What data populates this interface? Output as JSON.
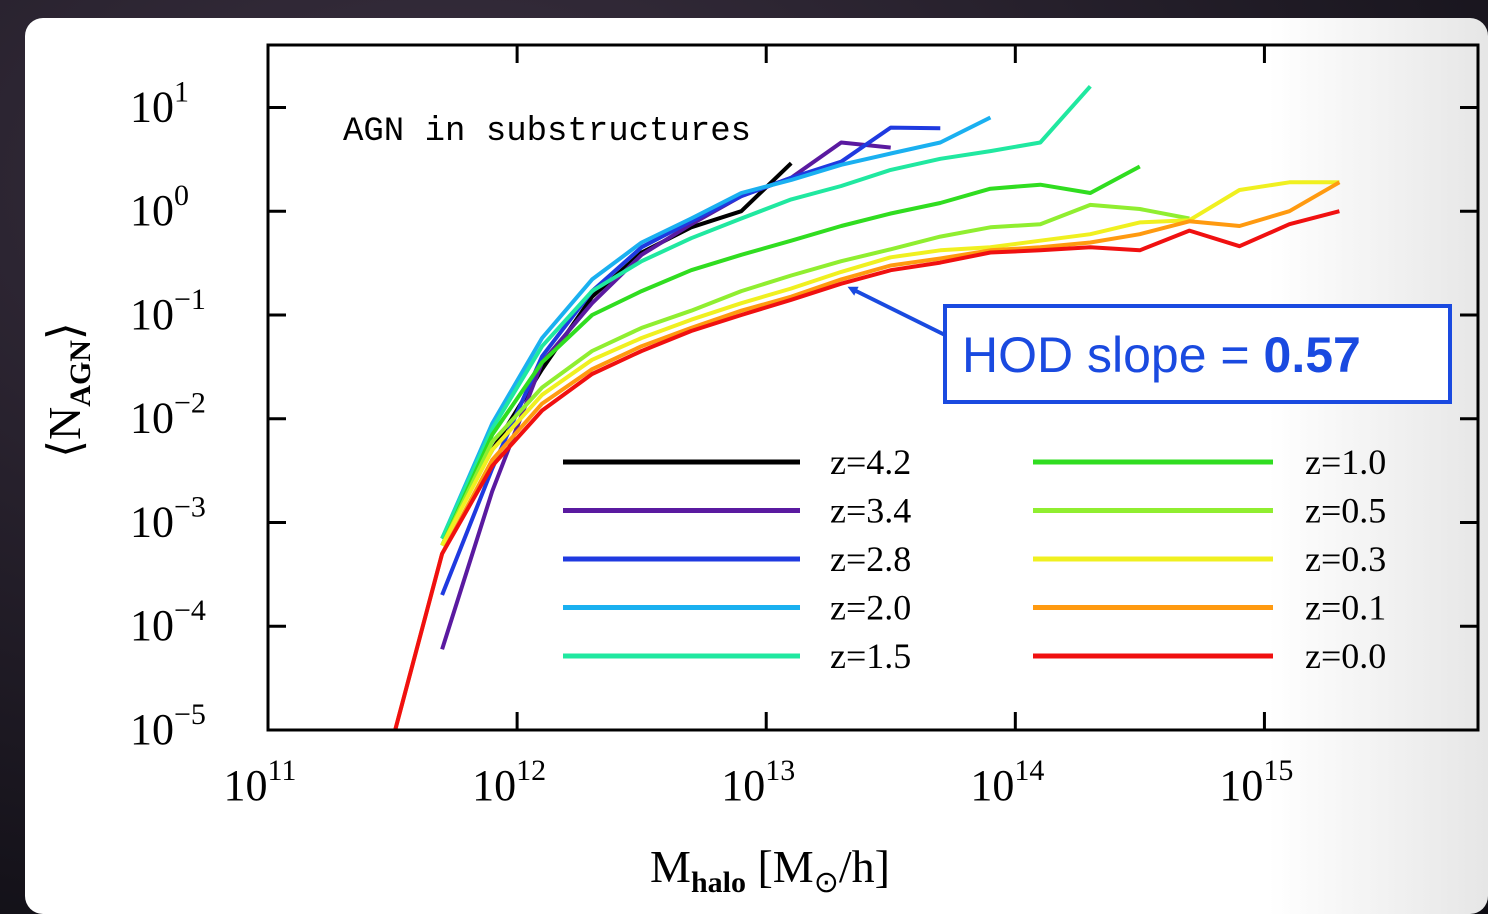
{
  "chart_data": {
    "type": "line",
    "annotation": "AGN in substructures",
    "callout": {
      "text": "HOD slope = ",
      "value": 0.57
    },
    "xlabel": [
      "M",
      "halo",
      " [M",
      "⊙",
      "/h]"
    ],
    "ylabel": [
      "⟨N",
      "AGN",
      "⟩"
    ],
    "xscale": "log",
    "yscale": "log",
    "xlim": [
      100000000000.0,
      7200000000000000.0
    ],
    "ylim": [
      1e-05,
      40
    ],
    "xticks": [
      {
        "value": 100000000000.0,
        "label": "10",
        "exponent": "11"
      },
      {
        "value": 1000000000000.0,
        "label": "10",
        "exponent": "12"
      },
      {
        "value": 10000000000000.0,
        "label": "10",
        "exponent": "13"
      },
      {
        "value": 100000000000000.0,
        "label": "10",
        "exponent": "14"
      },
      {
        "value": 1000000000000000.0,
        "label": "10",
        "exponent": "15"
      }
    ],
    "yticks": [
      {
        "value": 1e-05,
        "label": "10",
        "exponent": "−5"
      },
      {
        "value": 0.0001,
        "label": "10",
        "exponent": "−4"
      },
      {
        "value": 0.001,
        "label": "10",
        "exponent": "−3"
      },
      {
        "value": 0.01,
        "label": "10",
        "exponent": "−2"
      },
      {
        "value": 0.1,
        "label": "10",
        "exponent": "−1"
      },
      {
        "value": 1,
        "label": "10",
        "exponent": "0"
      },
      {
        "value": 10,
        "label": "10",
        "exponent": "1"
      }
    ],
    "x": [
      316000000000.0,
      500000000000.0,
      794000000000.0,
      1260000000000.0,
      2000000000000.0,
      3160000000000.0,
      5000000000000.0,
      7940000000000.0,
      12600000000000.0,
      20000000000000.0,
      31600000000000.0,
      50000000000000.0,
      79400000000000.0,
      126000000000000.0,
      200000000000000.0,
      316000000000000.0,
      500000000000000.0,
      794000000000000.0,
      1260000000000000.0,
      2000000000000000.0
    ],
    "series": [
      {
        "name": "z=4.2",
        "color": "#000000",
        "values": [
          null,
          0.0007,
          0.005,
          0.03,
          0.15,
          0.4,
          0.7,
          1.0,
          2.9,
          null,
          null,
          null,
          null,
          null,
          null,
          null,
          null,
          null,
          null,
          null
        ]
      },
      {
        "name": "z=3.4",
        "color": "#5a1aa0",
        "values": [
          null,
          6e-05,
          0.002,
          0.035,
          0.13,
          0.38,
          0.75,
          1.4,
          2.1,
          4.6,
          4.1,
          null,
          null,
          null,
          null,
          null,
          null,
          null,
          null,
          null
        ]
      },
      {
        "name": "z=2.8",
        "color": "#1f3ae0",
        "values": [
          null,
          0.0002,
          0.0033,
          0.04,
          0.17,
          0.45,
          0.8,
          1.4,
          2.1,
          3.0,
          6.4,
          6.3,
          null,
          null,
          null,
          null,
          null,
          null,
          null,
          null
        ]
      },
      {
        "name": "z=2.0",
        "color": "#1ab0f0",
        "values": [
          null,
          0.0007,
          0.009,
          0.06,
          0.22,
          0.5,
          0.85,
          1.5,
          2.0,
          2.8,
          3.6,
          4.6,
          8.0,
          null,
          null,
          null,
          null,
          null,
          null,
          null
        ]
      },
      {
        "name": "z=1.5",
        "color": "#20e8a0",
        "values": [
          null,
          0.0007,
          0.008,
          0.05,
          0.17,
          0.33,
          0.55,
          0.85,
          1.3,
          1.75,
          2.5,
          3.2,
          3.8,
          4.6,
          16,
          null,
          null,
          null,
          null,
          null
        ]
      },
      {
        "name": "z=1.0",
        "color": "#30dd20",
        "values": [
          null,
          0.0006,
          0.007,
          0.035,
          0.1,
          0.17,
          0.27,
          0.38,
          0.52,
          0.72,
          0.95,
          1.2,
          1.65,
          1.8,
          1.5,
          2.7,
          null,
          null,
          null,
          null
        ]
      },
      {
        "name": "z=0.5",
        "color": "#90ee30",
        "values": [
          null,
          0.0006,
          0.006,
          0.02,
          0.045,
          0.075,
          0.11,
          0.17,
          0.24,
          0.33,
          0.43,
          0.57,
          0.7,
          0.75,
          1.15,
          1.05,
          0.85,
          null,
          null,
          null
        ]
      },
      {
        "name": "z=0.3",
        "color": "#f0f020",
        "values": [
          null,
          0.0006,
          0.005,
          0.017,
          0.037,
          0.06,
          0.09,
          0.13,
          0.18,
          0.26,
          0.36,
          0.42,
          0.45,
          0.52,
          0.6,
          0.78,
          0.82,
          1.6,
          1.9,
          1.9
        ]
      },
      {
        "name": "z=0.1",
        "color": "#ff9a10",
        "values": [
          8e-06,
          0.0005,
          0.004,
          0.014,
          0.03,
          0.05,
          0.075,
          0.11,
          0.15,
          0.22,
          0.3,
          0.35,
          0.42,
          0.45,
          0.5,
          0.6,
          0.8,
          0.72,
          1.0,
          1.9
        ]
      },
      {
        "name": "z=0.0",
        "color": "#f01010",
        "values": [
          8e-06,
          0.0005,
          0.0035,
          0.012,
          0.027,
          0.045,
          0.07,
          0.1,
          0.14,
          0.2,
          0.27,
          0.32,
          0.4,
          0.42,
          0.45,
          0.42,
          0.65,
          0.46,
          0.75,
          1.0
        ]
      }
    ]
  }
}
